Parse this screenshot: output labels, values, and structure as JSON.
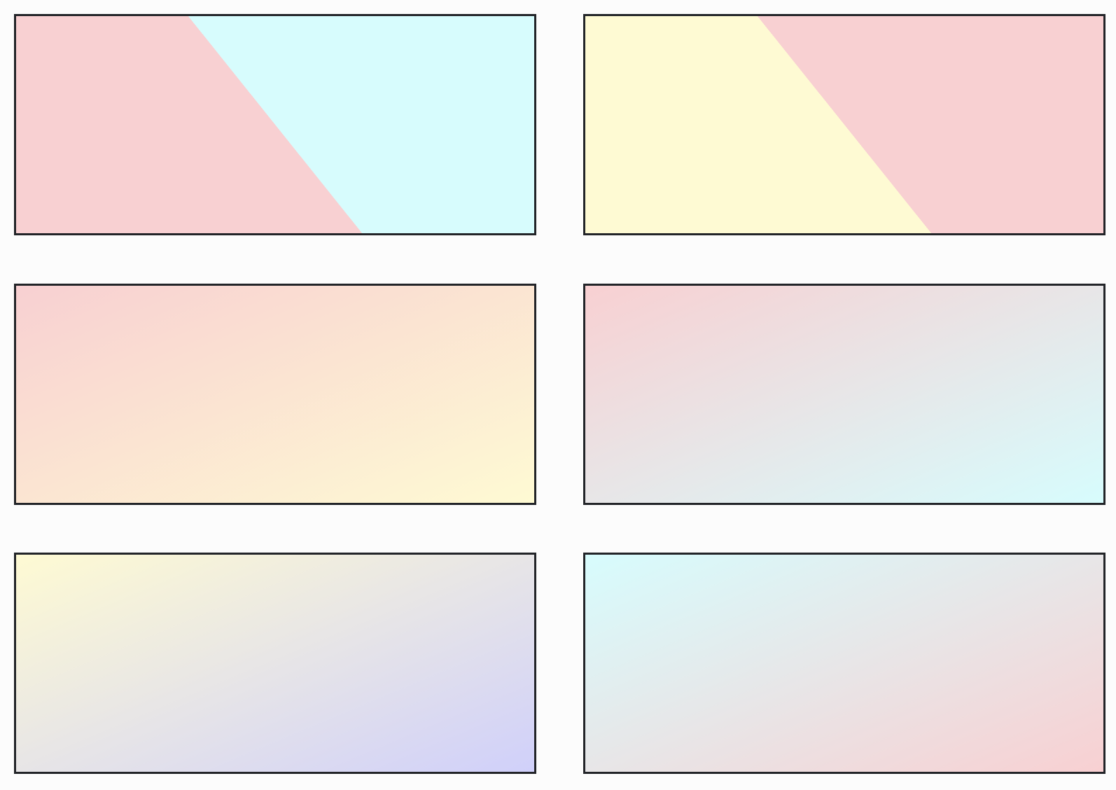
{
  "swatches": [
    {
      "id": "swatch-1",
      "style": "hard-split",
      "colors": [
        "#f8d0d2",
        "#d7fcfd"
      ]
    },
    {
      "id": "swatch-2",
      "style": "hard-split",
      "colors": [
        "#fefad3",
        "#f8d0d2"
      ]
    },
    {
      "id": "swatch-3",
      "style": "gradient",
      "colors": [
        "#f8d0d2",
        "#fefad3"
      ]
    },
    {
      "id": "swatch-4",
      "style": "gradient",
      "colors": [
        "#f8d0d2",
        "#d7fcfd"
      ]
    },
    {
      "id": "swatch-5",
      "style": "gradient",
      "colors": [
        "#fefad3",
        "#d0d0fa"
      ]
    },
    {
      "id": "swatch-6",
      "style": "gradient",
      "colors": [
        "#d7fcfd",
        "#f8d0d2"
      ]
    }
  ],
  "border_color": "#222428",
  "background_color": "#fcfcfc"
}
